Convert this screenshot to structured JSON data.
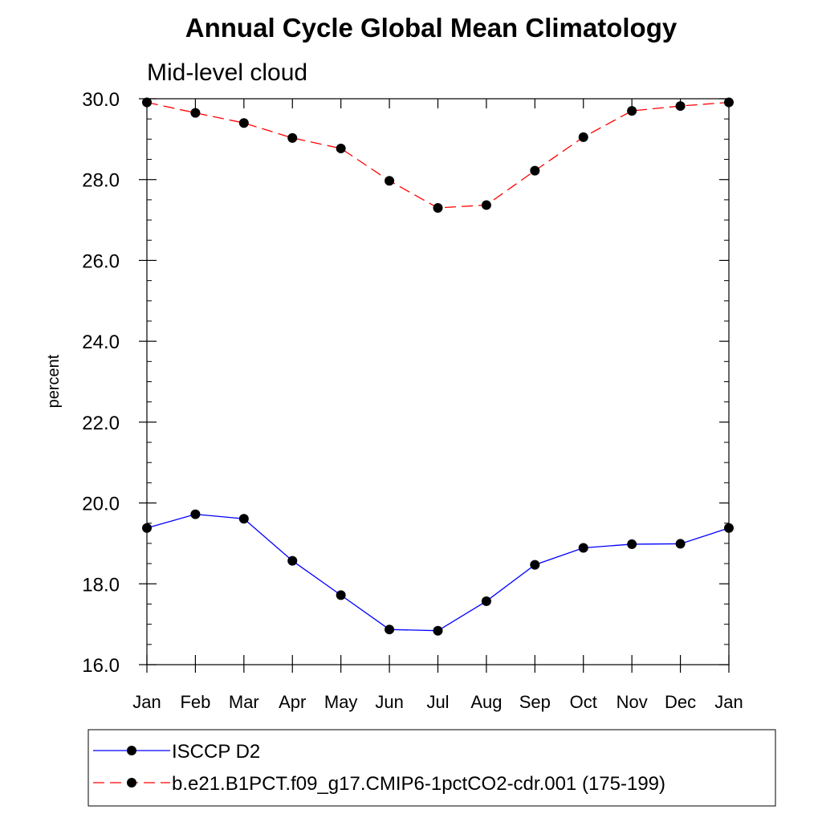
{
  "chart_data": {
    "type": "line",
    "title": "Annual Cycle Global Mean Climatology",
    "subtitle": "Mid-level cloud",
    "xlabel": "",
    "ylabel": "percent",
    "categories": [
      "Jan",
      "Feb",
      "Mar",
      "Apr",
      "May",
      "Jun",
      "Jul",
      "Aug",
      "Sep",
      "Oct",
      "Nov",
      "Dec",
      "Jan"
    ],
    "ylim": [
      16.0,
      30.0
    ],
    "yticks": [
      "16.0",
      "18.0",
      "20.0",
      "22.0",
      "24.0",
      "26.0",
      "28.0",
      "30.0"
    ],
    "grid": false,
    "legend_position": "bottom",
    "series": [
      {
        "name": "ISCCP D2",
        "color": "#0000ff",
        "line_style": "solid",
        "marker": "filled-circle",
        "values": [
          19.38,
          19.72,
          19.61,
          18.57,
          17.72,
          16.87,
          16.84,
          17.57,
          18.47,
          18.89,
          18.98,
          18.99,
          19.38
        ]
      },
      {
        "name": "b.e21.B1PCT.f09_g17.CMIP6-1pctCO2-cdr.001 (175-199)",
        "color": "#ff0000",
        "line_style": "dashed",
        "marker": "filled-circle",
        "values": [
          29.91,
          29.65,
          29.4,
          29.03,
          28.77,
          27.97,
          27.3,
          27.37,
          28.22,
          29.05,
          29.7,
          29.82,
          29.91
        ]
      }
    ]
  }
}
